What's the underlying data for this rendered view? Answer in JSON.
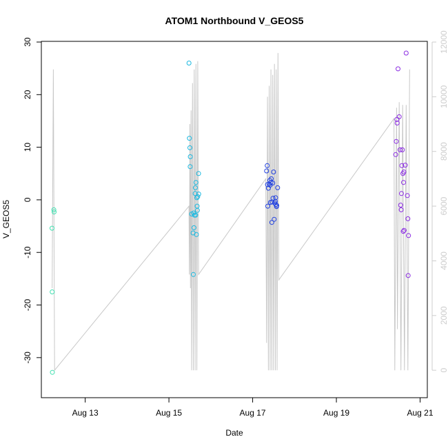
{
  "chart_data": {
    "type": "scatter",
    "title": "ATOM1 Northbound V_GEOS5",
    "xlabel": "Date",
    "ylabel": "V_GEOS5",
    "x_axis": {
      "kind": "date",
      "range": [
        "2019-08-12T04:00",
        "2019-08-20T23:00"
      ],
      "ticks": [
        {
          "value": "2019-08-13T00:00",
          "label": "Aug 13"
        },
        {
          "value": "2019-08-15T00:00",
          "label": "Aug 15"
        },
        {
          "value": "2019-08-17T00:00",
          "label": "Aug 17"
        },
        {
          "value": "2019-08-19T00:00",
          "label": "Aug 19"
        },
        {
          "value": "2019-08-21T00:00",
          "label": "Aug 21"
        }
      ]
    },
    "y_axis": {
      "range": [
        -35,
        30
      ],
      "ticks": [
        -30,
        -20,
        -10,
        0,
        10,
        20,
        30
      ]
    },
    "y2_axis": {
      "range": [
        -500,
        12000
      ],
      "ticks": [
        0,
        2000,
        4000,
        6000,
        8000,
        10000,
        12000
      ],
      "color": "#cccccc"
    },
    "grid": false,
    "legend": "none",
    "background_series": {
      "axis": "right",
      "color": "#c8c8c8",
      "points": [
        [
          "2019-08-12T05:03",
          3000
        ],
        [
          "2019-08-12T05:45",
          11000
        ],
        [
          "2019-08-12T06:27",
          0
        ],
        [
          "2019-08-15T11:30",
          6000
        ],
        [
          "2019-08-15T11:45",
          3500
        ],
        [
          "2019-08-15T12:00",
          9000
        ],
        [
          "2019-08-15T12:20",
          3000
        ],
        [
          "2019-08-15T12:40",
          9500
        ],
        [
          "2019-08-15T13:00",
          0
        ],
        [
          "2019-08-15T13:30",
          10500
        ],
        [
          "2019-08-15T14:00",
          0
        ],
        [
          "2019-08-15T14:30",
          11000
        ],
        [
          "2019-08-15T15:00",
          0
        ],
        [
          "2019-08-15T15:30",
          11200
        ],
        [
          "2019-08-15T16:00",
          0
        ],
        [
          "2019-08-15T16:30",
          11300
        ],
        [
          "2019-08-15T17:00",
          3500
        ],
        [
          "2019-08-17T07:30",
          7000
        ],
        [
          "2019-08-17T08:00",
          1000
        ],
        [
          "2019-08-17T08:30",
          10000
        ],
        [
          "2019-08-17T09:00",
          0
        ],
        [
          "2019-08-17T09:30",
          10400
        ],
        [
          "2019-08-17T10:00",
          0
        ],
        [
          "2019-08-17T10:30",
          11000
        ],
        [
          "2019-08-17T11:00",
          0
        ],
        [
          "2019-08-17T11:30",
          10800
        ],
        [
          "2019-08-17T12:00",
          0
        ],
        [
          "2019-08-17T12:30",
          11200
        ],
        [
          "2019-08-17T13:00",
          0
        ],
        [
          "2019-08-17T13:30",
          11000
        ],
        [
          "2019-08-17T14:00",
          0
        ],
        [
          "2019-08-17T14:30",
          11600
        ],
        [
          "2019-08-17T15:00",
          3300
        ],
        [
          "2019-08-20T09:00",
          9200
        ],
        [
          "2019-08-20T09:30",
          0
        ],
        [
          "2019-08-20T10:30",
          9600
        ],
        [
          "2019-08-20T11:00",
          1500
        ],
        [
          "2019-08-20T12:00",
          9800
        ],
        [
          "2019-08-20T13:00",
          0
        ],
        [
          "2019-08-20T14:00",
          9700
        ],
        [
          "2019-08-20T15:00",
          0
        ],
        [
          "2019-08-20T16:00",
          9700
        ],
        [
          "2019-08-20T17:00",
          0
        ],
        [
          "2019-08-20T18:00",
          11000
        ]
      ]
    },
    "series": [
      {
        "color": "#40e0b0",
        "points": [
          [
            "2019-08-12T05:00",
            -5.4
          ],
          [
            "2019-08-12T05:05",
            -17.5
          ],
          [
            "2019-08-12T05:10",
            -32.8
          ],
          [
            "2019-08-12T06:00",
            -1.9
          ],
          [
            "2019-08-12T06:10",
            -2.3
          ]
        ]
      },
      {
        "color": "#19b8e0",
        "points": [
          [
            "2019-08-15T11:30",
            26.0
          ],
          [
            "2019-08-15T11:45",
            11.7
          ],
          [
            "2019-08-15T12:00",
            9.9
          ],
          [
            "2019-08-15T12:10",
            6.3
          ],
          [
            "2019-08-15T12:15",
            8.2
          ],
          [
            "2019-08-15T13:00",
            -2.7
          ],
          [
            "2019-08-15T13:50",
            -6.3
          ],
          [
            "2019-08-15T14:00",
            -14.2
          ],
          [
            "2019-08-15T14:10",
            -2.5
          ],
          [
            "2019-08-15T14:20",
            -5.3
          ],
          [
            "2019-08-15T14:40",
            -2.9
          ],
          [
            "2019-08-15T15:00",
            1.2
          ],
          [
            "2019-08-15T15:10",
            2.3
          ],
          [
            "2019-08-15T15:20",
            -2.9
          ],
          [
            "2019-08-15T15:30",
            3.3
          ],
          [
            "2019-08-15T15:45",
            -6.6
          ],
          [
            "2019-08-15T16:00",
            0.4
          ],
          [
            "2019-08-15T16:10",
            -1.2
          ],
          [
            "2019-08-15T16:20",
            -2.0
          ],
          [
            "2019-08-15T16:30",
            0.6
          ],
          [
            "2019-08-15T17:00",
            5.0
          ],
          [
            "2019-08-15T17:05",
            1.1
          ]
        ]
      },
      {
        "color": "#2040e0",
        "points": [
          [
            "2019-08-17T08:00",
            5.5
          ],
          [
            "2019-08-17T08:20",
            6.5
          ],
          [
            "2019-08-17T08:30",
            2.9
          ],
          [
            "2019-08-17T08:40",
            -1.2
          ],
          [
            "2019-08-17T09:00",
            2.2
          ],
          [
            "2019-08-17T09:30",
            3.0
          ],
          [
            "2019-08-17T09:50",
            3.7
          ],
          [
            "2019-08-17T10:00",
            2.8
          ],
          [
            "2019-08-17T10:10",
            -0.5
          ],
          [
            "2019-08-17T10:30",
            3.3
          ],
          [
            "2019-08-17T10:40",
            4.0
          ],
          [
            "2019-08-17T11:00",
            -4.3
          ],
          [
            "2019-08-17T11:10",
            -0.4
          ],
          [
            "2019-08-17T11:30",
            3.2
          ],
          [
            "2019-08-17T11:40",
            0.3
          ],
          [
            "2019-08-17T12:00",
            5.3
          ],
          [
            "2019-08-17T12:20",
            -3.7
          ],
          [
            "2019-08-17T12:40",
            -0.6
          ],
          [
            "2019-08-17T13:00",
            -0.3
          ],
          [
            "2019-08-17T13:10",
            0.4
          ],
          [
            "2019-08-17T13:20",
            -0.9
          ],
          [
            "2019-08-17T13:40",
            -1.3
          ],
          [
            "2019-08-17T13:50",
            -1.1
          ],
          [
            "2019-08-17T14:20",
            2.3
          ]
        ]
      },
      {
        "color": "#8a2be2",
        "points": [
          [
            "2019-08-20T10:00",
            8.6
          ],
          [
            "2019-08-20T10:20",
            11.1
          ],
          [
            "2019-08-20T10:40",
            15.3
          ],
          [
            "2019-08-20T10:50",
            14.6
          ],
          [
            "2019-08-20T11:20",
            24.9
          ],
          [
            "2019-08-20T12:00",
            15.8
          ],
          [
            "2019-08-20T12:30",
            9.5
          ],
          [
            "2019-08-20T12:50",
            -1.0
          ],
          [
            "2019-08-20T13:10",
            -1.9
          ],
          [
            "2019-08-20T13:20",
            1.2
          ],
          [
            "2019-08-20T13:30",
            6.5
          ],
          [
            "2019-08-20T13:50",
            9.5
          ],
          [
            "2019-08-20T14:10",
            5.0
          ],
          [
            "2019-08-20T14:20",
            -6.0
          ],
          [
            "2019-08-20T14:30",
            3.3
          ],
          [
            "2019-08-20T14:40",
            5.3
          ],
          [
            "2019-08-20T14:50",
            -5.8
          ],
          [
            "2019-08-20T15:30",
            6.6
          ],
          [
            "2019-08-20T16:00",
            27.9
          ],
          [
            "2019-08-20T16:40",
            0.8
          ],
          [
            "2019-08-20T17:00",
            -3.6
          ],
          [
            "2019-08-20T17:10",
            -14.4
          ],
          [
            "2019-08-20T17:20",
            -6.8
          ]
        ]
      }
    ]
  }
}
